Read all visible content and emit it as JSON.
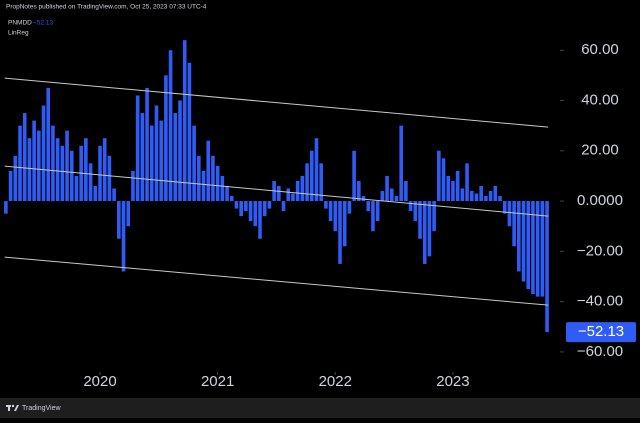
{
  "header": "PropNotes published on TradingView.com, Oct 25, 2023 07:33 UTC-4",
  "footer": "TradingView",
  "chart_data": {
    "type": "bar",
    "indicator": "PNMDD",
    "indicator_value_label": "−52.13",
    "overlay": "LinReg",
    "color": "#2f5cf5",
    "x": [
      2019.2,
      2019.24,
      2019.28,
      2019.32,
      2019.36,
      2019.4,
      2019.44,
      2019.48,
      2019.52,
      2019.56,
      2019.6,
      2019.64,
      2019.68,
      2019.72,
      2019.76,
      2019.8,
      2019.84,
      2019.88,
      2019.92,
      2019.96,
      2020.0,
      2020.04,
      2020.08,
      2020.12,
      2020.16,
      2020.2,
      2020.24,
      2020.28,
      2020.32,
      2020.36,
      2020.4,
      2020.44,
      2020.48,
      2020.52,
      2020.56,
      2020.6,
      2020.64,
      2020.68,
      2020.72,
      2020.76,
      2020.8,
      2020.84,
      2020.88,
      2020.92,
      2020.96,
      2021.0,
      2021.04,
      2021.08,
      2021.12,
      2021.16,
      2021.2,
      2021.24,
      2021.28,
      2021.32,
      2021.36,
      2021.4,
      2021.44,
      2021.48,
      2021.52,
      2021.56,
      2021.6,
      2021.64,
      2021.68,
      2021.72,
      2021.76,
      2021.8,
      2021.84,
      2021.88,
      2021.92,
      2021.96,
      2022.0,
      2022.04,
      2022.08,
      2022.12,
      2022.16,
      2022.2,
      2022.24,
      2022.28,
      2022.32,
      2022.36,
      2022.4,
      2022.44,
      2022.48,
      2022.52,
      2022.56,
      2022.6,
      2022.64,
      2022.68,
      2022.72,
      2022.76,
      2022.8,
      2022.84,
      2022.88,
      2022.92,
      2022.96,
      2023.0,
      2023.04,
      2023.08,
      2023.12,
      2023.16,
      2023.2,
      2023.24,
      2023.28,
      2023.32,
      2023.36,
      2023.4,
      2023.44,
      2023.48,
      2023.52,
      2023.56,
      2023.6,
      2023.64,
      2023.68,
      2023.72,
      2023.76,
      2023.8
    ],
    "values": [
      -5,
      12,
      18,
      30,
      35,
      25,
      32,
      28,
      38,
      45,
      30,
      25,
      22,
      28,
      20,
      10,
      22,
      25,
      15,
      6,
      22,
      25,
      18,
      5,
      -15,
      -28,
      -10,
      12,
      42,
      35,
      45,
      30,
      38,
      32,
      50,
      60,
      35,
      40,
      64,
      55,
      30,
      18,
      12,
      24,
      18,
      14,
      10,
      6,
      2,
      -3,
      -6,
      -4,
      -8,
      -10,
      -15,
      -6,
      -3,
      8,
      6,
      -4,
      5,
      3,
      8,
      10,
      15,
      20,
      25,
      15,
      -3,
      -8,
      -12,
      -25,
      -18,
      -5,
      20,
      8,
      2,
      -4,
      -12,
      -8,
      4,
      10,
      5,
      2,
      30,
      8,
      -4,
      -8,
      -15,
      -25,
      -22,
      -12,
      20,
      17,
      10,
      8,
      12,
      5,
      15,
      4,
      3,
      6,
      2,
      4,
      6,
      2,
      -5,
      -10,
      -18,
      -28,
      -32,
      -35,
      -37,
      -38,
      -38,
      -52.13
    ],
    "xlim": [
      2019.15,
      2023.91
    ],
    "xticks": [
      2020,
      2021,
      2022,
      2023
    ],
    "ylim": [
      -67.2,
      74.4
    ],
    "yticks": [
      {
        "value": 60,
        "label": "60.00"
      },
      {
        "value": 40,
        "label": "40.00"
      },
      {
        "value": 20,
        "label": "20.00"
      },
      {
        "value": 0,
        "label": "0.0000"
      },
      {
        "value": -20,
        "label": "−20.00"
      },
      {
        "value": -40,
        "label": "−40.00"
      },
      {
        "value": -60,
        "label": "−60.00"
      }
    ],
    "last_value": {
      "value": -52.13,
      "label": "−52.13"
    },
    "regression_color": "#c8c8c8",
    "regression_x": [
      2019.19,
      2023.81
    ],
    "regression_lines": [
      {
        "values": [
          48.9,
          29.4
        ]
      },
      {
        "values": [
          13.9,
          -6.0
        ]
      },
      {
        "values": [
          -22.3,
          -41.4
        ]
      }
    ]
  }
}
